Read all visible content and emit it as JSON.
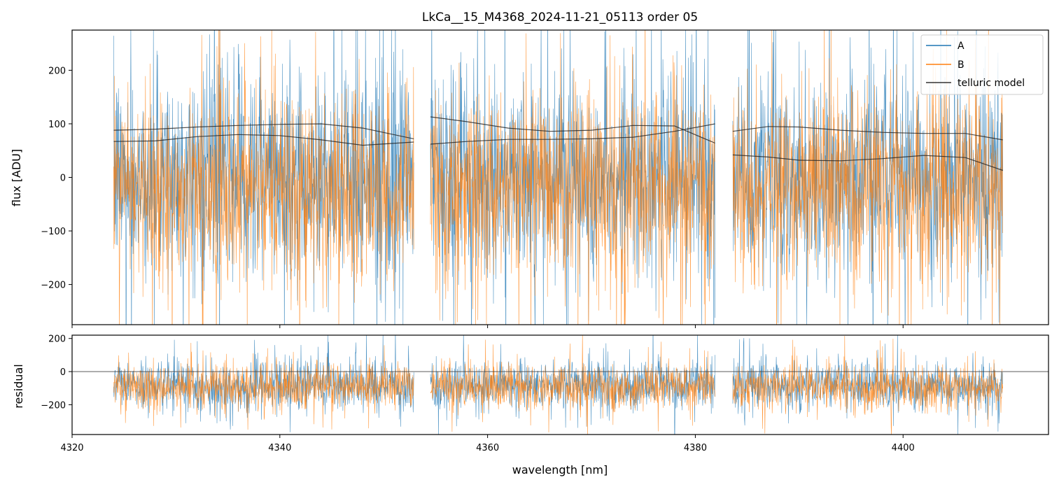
{
  "chart_data": [
    {
      "type": "line",
      "title": "LkCa__15_M4368_2024-11-21_05113  order 05",
      "xlabel": "",
      "ylabel": "flux [ADU]",
      "xlim": [
        4320,
        4414
      ],
      "ylim": [
        -275,
        275
      ],
      "yticks": [
        -200,
        -100,
        0,
        100,
        200
      ],
      "yticklabels": [
        "−200",
        "−100",
        "0",
        "100",
        "200"
      ],
      "xticks": [
        4320,
        4340,
        4360,
        4380,
        4400
      ],
      "legend_position": "top-right",
      "segments": [
        [
          4324.0,
          4352.9
        ],
        [
          4354.5,
          4381.9
        ],
        [
          4383.6,
          4409.6
        ]
      ],
      "series": [
        {
          "name": "A",
          "color": "#1f77b4",
          "noise_level": "high",
          "approx_center": 5,
          "approx_spread": 170
        },
        {
          "name": "B",
          "color": "#ff7f0e",
          "noise_level": "high",
          "approx_center": -20,
          "approx_spread": 160
        },
        {
          "name": "telluric model",
          "color": "#000000",
          "curves": [
            {
              "x": [
                4324,
                4328,
                4332,
                4336,
                4340,
                4344,
                4348,
                4352.9
              ],
              "y": [
                88,
                90,
                94,
                97,
                99,
                100,
                92,
                72
              ]
            },
            {
              "x": [
                4324,
                4328,
                4332,
                4336,
                4340,
                4344,
                4348,
                4352.9
              ],
              "y": [
                67,
                68,
                76,
                80,
                78,
                70,
                60,
                66
              ]
            },
            {
              "x": [
                4354.5,
                4358,
                4362,
                4366,
                4370,
                4374,
                4378,
                4381.9
              ],
              "y": [
                113,
                104,
                92,
                86,
                88,
                97,
                96,
                64
              ]
            },
            {
              "x": [
                4354.5,
                4358,
                4362,
                4366,
                4370,
                4374,
                4378,
                4381.9
              ],
              "y": [
                62,
                67,
                71,
                71,
                72,
                75,
                86,
                100
              ]
            },
            {
              "x": [
                4383.6,
                4387,
                4390,
                4394,
                4398,
                4402,
                4406,
                4409.6
              ],
              "y": [
                86,
                95,
                94,
                88,
                84,
                82,
                82,
                70
              ]
            },
            {
              "x": [
                4383.6,
                4387,
                4390,
                4394,
                4398,
                4402,
                4406,
                4409.6
              ],
              "y": [
                42,
                38,
                32,
                31,
                35,
                41,
                37,
                13
              ]
            }
          ]
        }
      ]
    },
    {
      "type": "line",
      "title": "",
      "xlabel": "wavelength [nm]",
      "ylabel": "residual",
      "xlim": [
        4320,
        4414
      ],
      "ylim": [
        -380,
        220
      ],
      "yticks": [
        -200,
        0,
        200
      ],
      "yticklabels": [
        "−200",
        "0",
        "200"
      ],
      "xticks": [
        4320,
        4340,
        4360,
        4380,
        4400
      ],
      "xticklabels": [
        "4320",
        "4340",
        "4360",
        "4380",
        "4400"
      ],
      "reference_line": 0,
      "segments": [
        [
          4324.0,
          4352.9
        ],
        [
          4354.5,
          4381.9
        ],
        [
          4383.6,
          4409.6
        ]
      ],
      "series": [
        {
          "name": "A",
          "color": "#1f77b4",
          "approx_center": -80,
          "approx_spread": 130
        },
        {
          "name": "B",
          "color": "#ff7f0e",
          "approx_center": -90,
          "approx_spread": 120
        }
      ]
    }
  ]
}
